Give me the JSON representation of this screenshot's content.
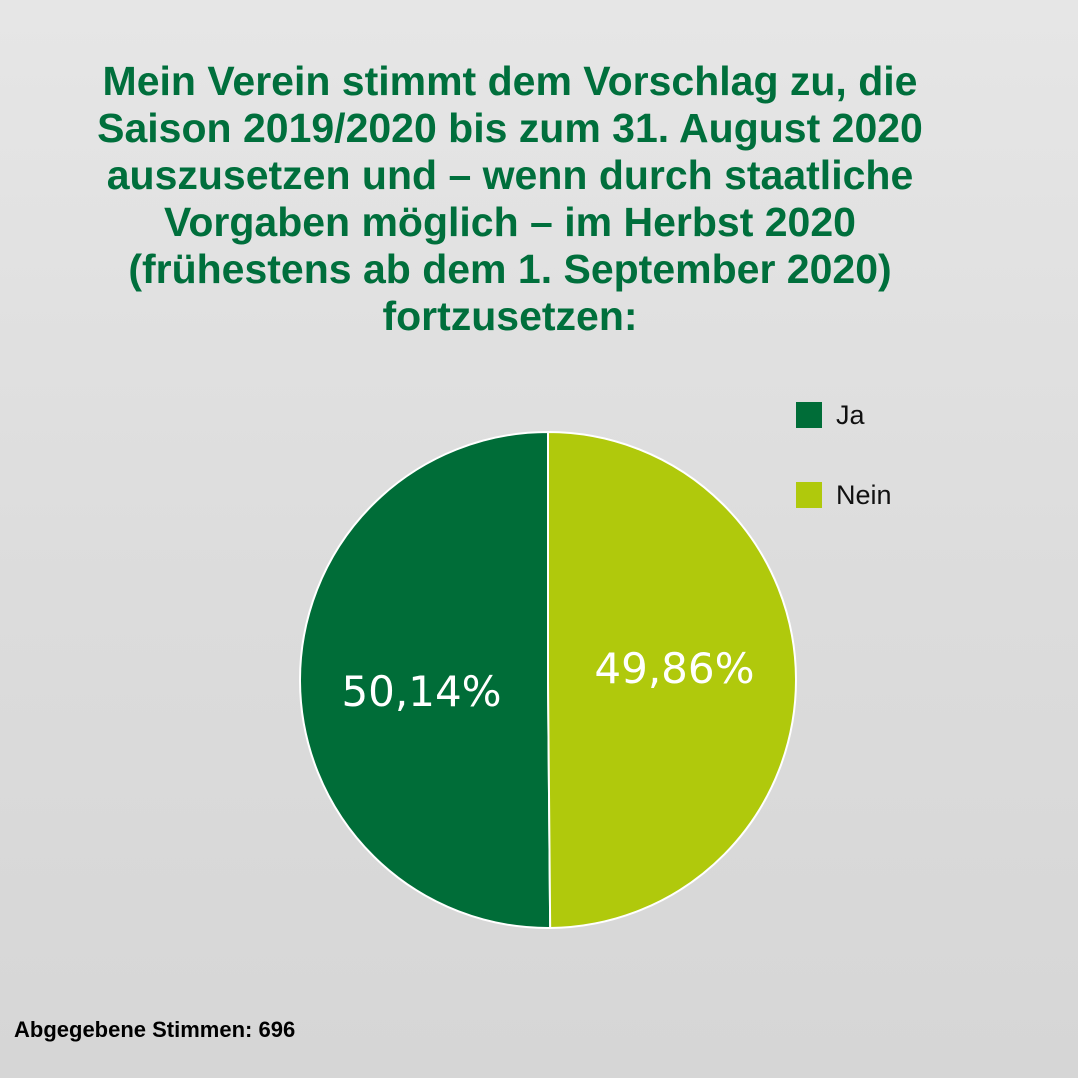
{
  "title_lines": [
    "Mein Verein stimmt dem Vorschlag zu, die",
    "Saison 2019/2020 bis zum 31. August 2020",
    "auszusetzen und – wenn durch staatliche",
    "Vorgaben möglich – im Herbst 2020",
    "(frühestens ab dem 1. September 2020)",
    "fortzusetzen:"
  ],
  "chart_data": {
    "type": "pie",
    "title": "Mein Verein stimmt dem Vorschlag zu, die Saison 2019/2020 bis zum 31. August 2020 auszusetzen und – wenn durch staatliche Vorgaben möglich – im Herbst 2020 (frühestens ab dem 1. September 2020) fortzusetzen:",
    "categories": [
      "Ja",
      "Nein"
    ],
    "values": [
      50.14,
      49.86
    ],
    "data_labels": [
      "50,14%",
      "49,86%"
    ],
    "colors": [
      "#006d38",
      "#b0c90c"
    ],
    "legend": "right"
  },
  "legend": {
    "items": [
      {
        "label": "Ja",
        "color": "#006d38"
      },
      {
        "label": "Nein",
        "color": "#b0c90c"
      }
    ]
  },
  "footer": {
    "text": "Abgegebene Stimmen: 696"
  }
}
